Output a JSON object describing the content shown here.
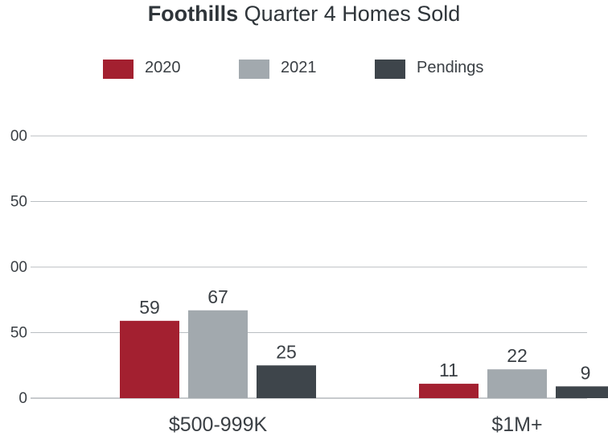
{
  "title": {
    "strong": "Foothills",
    "rest": " Quarter 4 Homes Sold"
  },
  "legend": [
    {
      "label": "2020",
      "color": "#a32030"
    },
    {
      "label": "2021",
      "color": "#a2a9ae"
    },
    {
      "label": "Pendings",
      "color": "#3e454b"
    }
  ],
  "chart_data": {
    "type": "bar",
    "title": "Foothills Quarter 4 Homes Sold",
    "categories": [
      "$500-999K",
      "$1M+"
    ],
    "series": [
      {
        "name": "2020",
        "values": [
          59,
          11
        ],
        "color": "#a32030"
      },
      {
        "name": "2021",
        "values": [
          67,
          22
        ],
        "color": "#a2a9ae"
      },
      {
        "name": "Pendings",
        "values": [
          25,
          9
        ],
        "color": "#3e454b"
      }
    ],
    "y_ticks": [
      "00",
      "50",
      "00",
      "50",
      "0"
    ],
    "ylim": [
      0,
      200
    ],
    "grid": true,
    "legend_position": "top"
  }
}
